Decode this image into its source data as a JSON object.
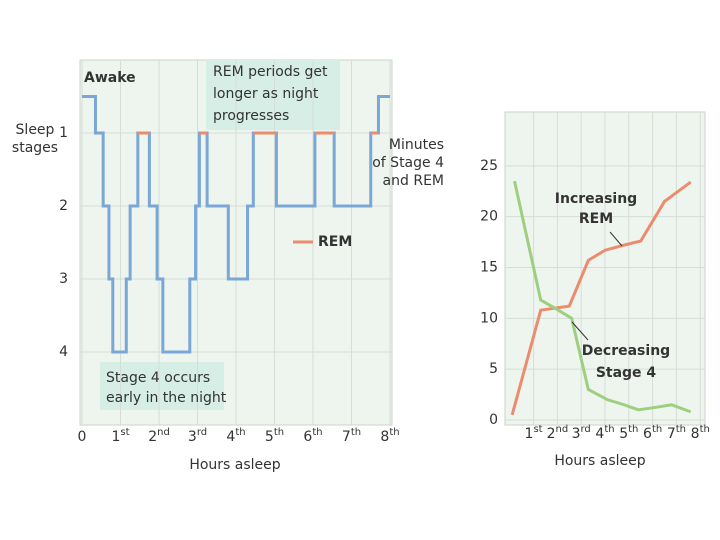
{
  "chart_data": [
    {
      "type": "step",
      "x": [
        0,
        0.35,
        0.55,
        0.7,
        0.8,
        1.15,
        1.25,
        1.45,
        1.75,
        1.95,
        2.1,
        2.8,
        2.95,
        3.05,
        3.25,
        3.8,
        4.3,
        4.45,
        5.05,
        6.05,
        6.55,
        7.5,
        7.7,
        8
      ],
      "series": [
        {
          "color": "#7aa7d6",
          "values": [
            0.5,
            1,
            2,
            3,
            4,
            3,
            2,
            1,
            2,
            3,
            4,
            3,
            2,
            1,
            2,
            3,
            2,
            1,
            2,
            1,
            2,
            1,
            0.5,
            0.5
          ]
        },
        {
          "name": "REM",
          "color": "#ec8c6e",
          "values": [
            null,
            null,
            null,
            null,
            null,
            null,
            null,
            1,
            null,
            null,
            null,
            null,
            null,
            1,
            null,
            null,
            null,
            1,
            null,
            1,
            null,
            1,
            null,
            null
          ]
        }
      ],
      "xlim": [
        0,
        8
      ],
      "xticks": [
        0,
        {
          "value": 1,
          "label": "1st"
        },
        {
          "value": 2,
          "label": "2nd"
        },
        {
          "value": 3,
          "label": "3rd"
        },
        {
          "value": 4,
          "label": "4th"
        },
        {
          "value": 5,
          "label": "5th"
        },
        {
          "value": 6,
          "label": "6th"
        },
        {
          "value": 7,
          "label": "7th"
        },
        {
          "value": 8,
          "label": "8th"
        }
      ],
      "ylim": [
        5,
        0
      ],
      "yticks": [
        1,
        2,
        3,
        4
      ],
      "xlabel": "Hours asleep",
      "ylabel": [
        "Sleep",
        "stages"
      ],
      "annotations": [
        [
          "Awake"
        ],
        [
          "REM periods get",
          "longer as night",
          "progresses"
        ],
        [
          "Stage 4 occurs",
          "early in the night"
        ]
      ],
      "grid": true
    },
    {
      "type": "line",
      "series": [
        {
          "color": "#ec8c6e",
          "x": [
            0.1,
            1.3,
            2.5,
            3.3,
            4.0,
            4.8,
            5.5,
            6.5,
            7.6
          ],
          "values": [
            0.5,
            10.8,
            11.2,
            15.7,
            16.7,
            17.2,
            17.6,
            21.5,
            23.4
          ]
        },
        {
          "color": "#9ccf7e",
          "x": [
            0.2,
            1.3,
            1.9,
            2.6,
            3.3,
            4.1,
            4.8,
            5.4,
            6.0,
            6.8,
            7.6
          ],
          "values": [
            23.5,
            11.8,
            11,
            10,
            3,
            2,
            1.5,
            1,
            1.2,
            1.5,
            0.8
          ]
        }
      ],
      "xlim": [
        -0.2,
        8.2
      ],
      "xticks": [
        {
          "value": 1,
          "label": "1st"
        },
        {
          "value": 2,
          "label": "2nd"
        },
        {
          "value": 3,
          "label": "3rd"
        },
        {
          "value": 4,
          "label": "4th"
        },
        {
          "value": 5,
          "label": "5th"
        },
        {
          "value": 6,
          "label": "6th"
        },
        {
          "value": 7,
          "label": "7th"
        },
        {
          "value": 8,
          "label": "8th"
        }
      ],
      "ylim": [
        0,
        30
      ],
      "yticks": [
        0,
        5,
        10,
        15,
        20,
        25
      ],
      "xlabel": "Hours asleep",
      "ylabel": [
        "Minutes",
        "of Stage 4",
        "and REM"
      ],
      "annotations": [
        [
          "Increasing",
          "REM"
        ],
        [
          "Decreasing",
          "Stage 4"
        ]
      ],
      "grid": true
    }
  ]
}
